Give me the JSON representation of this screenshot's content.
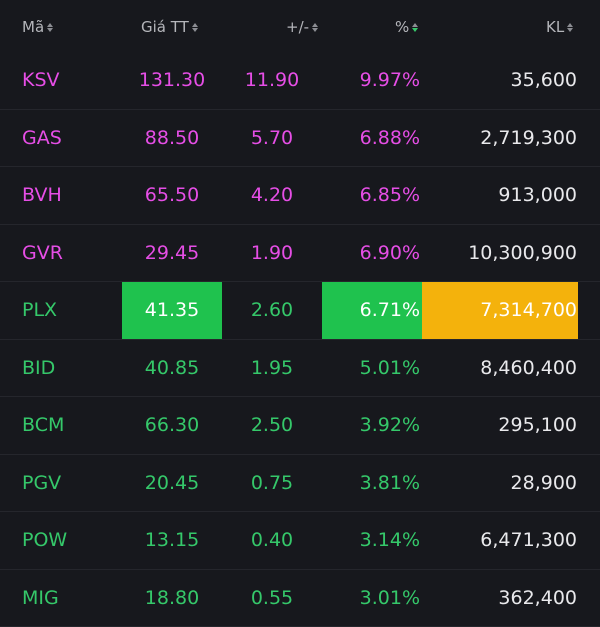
{
  "header": {
    "symbol": "Mã",
    "price": "Giá TT",
    "change": "+/-",
    "percent": "%",
    "volume": "KL"
  },
  "colors": {
    "ceiling": "#e64ee6",
    "up": "#35c86a",
    "highlight_green": "#1fc24e",
    "highlight_amber": "#f4b20c",
    "background": "#17181d"
  },
  "rows": [
    {
      "symbol": "KSV",
      "price": "131.30",
      "change": "11.90",
      "percent": "9.97%",
      "volume": "35,600"
    },
    {
      "symbol": "GAS",
      "price": "88.50",
      "change": "5.70",
      "percent": "6.88%",
      "volume": "2,719,300"
    },
    {
      "symbol": "BVH",
      "price": "65.50",
      "change": "4.20",
      "percent": "6.85%",
      "volume": "913,000"
    },
    {
      "symbol": "GVR",
      "price": "29.45",
      "change": "1.90",
      "percent": "6.90%",
      "volume": "10,300,900"
    },
    {
      "symbol": "PLX",
      "price": "41.35",
      "change": "2.60",
      "percent": "6.71%",
      "volume": "7,314,700"
    },
    {
      "symbol": "BID",
      "price": "40.85",
      "change": "1.95",
      "percent": "5.01%",
      "volume": "8,460,400"
    },
    {
      "symbol": "BCM",
      "price": "66.30",
      "change": "2.50",
      "percent": "3.92%",
      "volume": "295,100"
    },
    {
      "symbol": "PGV",
      "price": "20.45",
      "change": "0.75",
      "percent": "3.81%",
      "volume": "28,900"
    },
    {
      "symbol": "POW",
      "price": "13.15",
      "change": "0.40",
      "percent": "3.14%",
      "volume": "6,471,300"
    },
    {
      "symbol": "MIG",
      "price": "18.80",
      "change": "0.55",
      "percent": "3.01%",
      "volume": "362,400"
    }
  ]
}
